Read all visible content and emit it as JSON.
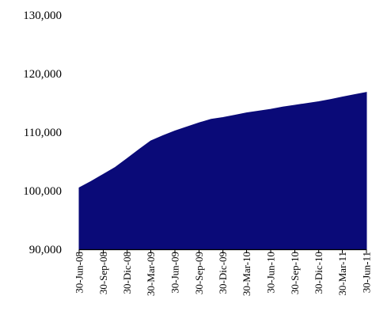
{
  "chart_data": {
    "type": "area",
    "title": "",
    "xlabel": "",
    "ylabel": "",
    "ylim": [
      90000,
      130000
    ],
    "y_ticks": [
      "90,000",
      "100,000",
      "110,000",
      "120,000",
      "130,000"
    ],
    "y_tick_values": [
      90000,
      100000,
      110000,
      120000,
      130000
    ],
    "x_tick_labels": [
      "30-Jun-08",
      "30-Sep-08",
      "30-Dic-08",
      "30-Mar-09",
      "30-Jun-09",
      "30-Sep-09",
      "30-Dic-09",
      "30-Mar-10",
      "30-Jun-10",
      "30-Sep-10",
      "30-Dic-10",
      "30-Mar-11",
      "30-Jun-11"
    ],
    "grid": false,
    "legend": "none",
    "series": [
      {
        "color": "#0a0a78",
        "x": [
          "30-Jun-08",
          "15-Aug-08",
          "30-Sep-08",
          "15-Nov-08",
          "30-Dic-08",
          "15-Feb-09",
          "30-Mar-09",
          "15-May-09",
          "30-Jun-09",
          "15-Aug-09",
          "30-Sep-09",
          "15-Nov-09",
          "30-Dic-09",
          "15-Feb-10",
          "30-Mar-10",
          "15-May-10",
          "30-Jun-10",
          "15-Aug-10",
          "30-Sep-10",
          "15-Nov-10",
          "30-Dic-10",
          "15-Feb-11",
          "30-Mar-11",
          "15-May-11",
          "30-Jun-11"
        ],
        "values": [
          100500,
          101600,
          102800,
          104000,
          105500,
          107100,
          108500,
          109400,
          110200,
          110900,
          111600,
          112200,
          112500,
          112900,
          113300,
          113600,
          113900,
          114300,
          114600,
          114900,
          115200,
          115600,
          116000,
          116400,
          116800
        ]
      }
    ]
  }
}
